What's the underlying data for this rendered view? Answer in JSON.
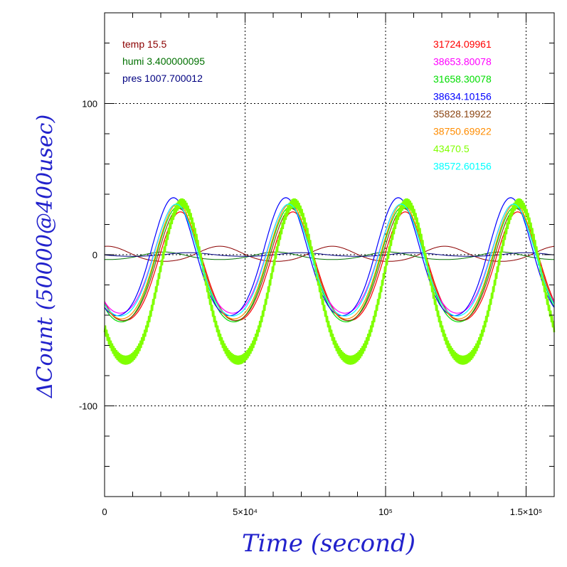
{
  "chart_data": {
    "type": "line",
    "xlabel": "Time (second)",
    "ylabel": "ΔCount (50000@400usec)",
    "xlim": [
      0,
      160000
    ],
    "ylim": [
      -160,
      160
    ],
    "x_ticks": [
      {
        "value": 0,
        "label": "0"
      },
      {
        "value": 50000,
        "label": "5×10⁴"
      },
      {
        "value": 100000,
        "label": "10⁵"
      },
      {
        "value": 150000,
        "label": "1.5×10⁵"
      }
    ],
    "y_ticks": [
      {
        "value": 100,
        "label": "100"
      },
      {
        "value": 0,
        "label": "0"
      },
      {
        "value": -100,
        "label": "-100"
      }
    ],
    "grid": true,
    "period": 40000,
    "env_legend": [
      {
        "label": "temp 15.5",
        "color": "#8b0000"
      },
      {
        "label": "humi 3.400000095",
        "color": "#007000"
      },
      {
        "label": "pres 1007.700012",
        "color": "#000080"
      }
    ],
    "env_series": [
      {
        "color": "#8b0000",
        "offset": 0,
        "amplitude": 5,
        "peak_x": 1000
      },
      {
        "color": "#007000",
        "offset": -1,
        "amplitude": 2.5,
        "peak_x": 21000
      },
      {
        "color": "#000080",
        "offset": 0,
        "amplitude": 1.2,
        "peak_x": 30000
      }
    ],
    "series": [
      {
        "name": "31724.09961",
        "color": "#ff0000",
        "offset": -12,
        "amplitude": 36,
        "peak_x": 27000
      },
      {
        "name": "38653.80078",
        "color": "#ff00ff",
        "offset": -7,
        "amplitude": 36,
        "peak_x": 25500
      },
      {
        "name": "31658.30078",
        "color": "#00dd00",
        "offset": -11,
        "amplitude": 38,
        "peak_x": 26000
      },
      {
        "name": "38634.10156",
        "color": "#0000ff",
        "offset": -6,
        "amplitude": 39,
        "peak_x": 24500
      },
      {
        "name": "35828.19922",
        "color": "#8b4513",
        "offset": -11,
        "amplitude": 37,
        "peak_x": 26500
      },
      {
        "name": "38750.69922",
        "color": "#ff8c00",
        "offset": -9,
        "amplitude": 38,
        "peak_x": 26000
      },
      {
        "name": "43470.5",
        "color": "#80ff00",
        "offset": -24,
        "amplitude": 52,
        "peak_x": 27500
      },
      {
        "name": "38572.60156",
        "color": "#00ffff",
        "offset": -8,
        "amplitude": 37,
        "peak_x": 25500
      }
    ]
  }
}
